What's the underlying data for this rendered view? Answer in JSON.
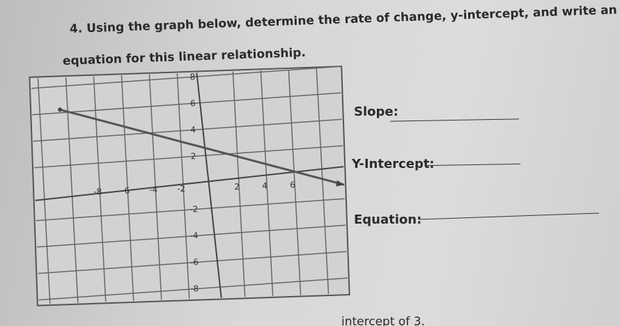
{
  "question": {
    "number": "4.",
    "line1": "Using the graph below, determine the rate of change, y-intercept, and write an",
    "line2": "equation for this linear relationship."
  },
  "graph": {
    "xticks": [
      -8,
      -6,
      -4,
      -2,
      2,
      4,
      6
    ],
    "yticks": [
      8,
      6,
      4,
      2,
      -2,
      -4,
      -6,
      -8
    ]
  },
  "fields": [
    "Slope:",
    "Y-Intercept:",
    "Equation:"
  ],
  "footer": "intercept of 3."
}
